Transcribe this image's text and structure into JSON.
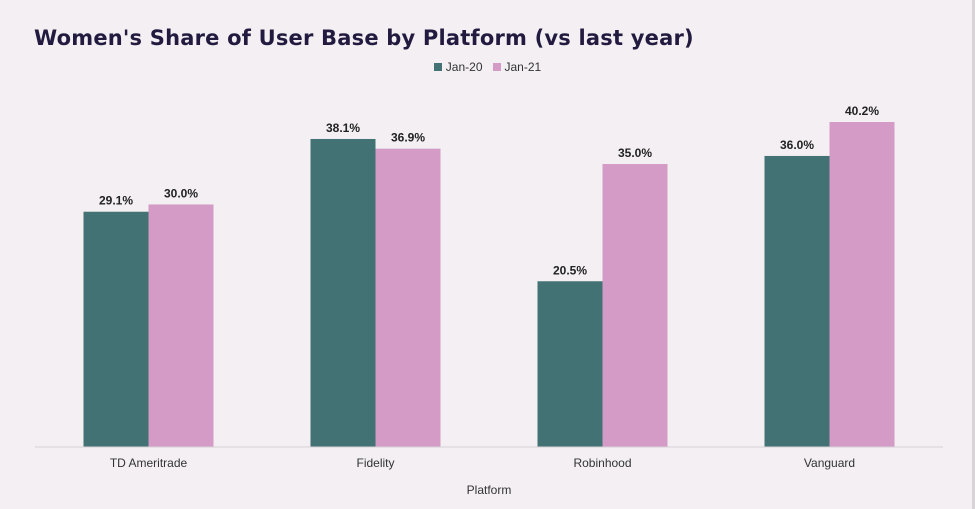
{
  "chart_data": {
    "type": "bar",
    "title": "Women's Share of User Base by Platform (vs last year)",
    "xlabel": "Platform",
    "ylabel": "",
    "categories": [
      "TD Ameritrade",
      "Fidelity",
      "Robinhood",
      "Vanguard"
    ],
    "series": [
      {
        "name": "Jan-20",
        "color": "#427273",
        "values": [
          29.1,
          38.1,
          20.5,
          36.0
        ],
        "labels": [
          "29.1%",
          "38.1%",
          "20.5%",
          "36.0%"
        ]
      },
      {
        "name": "Jan-21",
        "color": "#d39bc6",
        "values": [
          30.0,
          36.9,
          35.0,
          40.2
        ],
        "labels": [
          "30.0%",
          "36.9%",
          "35.0%",
          "40.2%"
        ]
      }
    ],
    "ylim": [
      0,
      45
    ],
    "grid": false,
    "legend_position": "top-center"
  }
}
